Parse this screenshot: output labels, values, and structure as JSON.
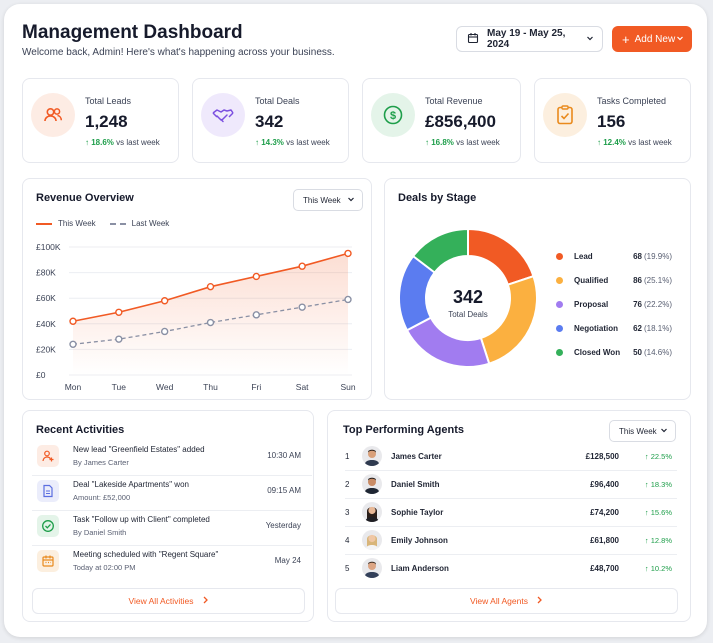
{
  "header": {
    "title": "Management Dashboard",
    "subtitle": "Welcome back, Admin! Here's what's happening across your business.",
    "date_range": "May 19 - May 25, 2024",
    "add_new_label": "Add New"
  },
  "stats": [
    {
      "label": "Total Leads",
      "value": "1,248",
      "change": "18.6%",
      "suffix": "vs last week",
      "icon": "users-icon",
      "color": "#f15a24"
    },
    {
      "label": "Total Deals",
      "value": "342",
      "change": "14.3%",
      "suffix": "vs last week",
      "icon": "handshake-icon",
      "color": "#7b4fe0"
    },
    {
      "label": "Total Revenue",
      "value": "£856,400",
      "change": "16.8%",
      "suffix": "vs last week",
      "icon": "dollar-icon",
      "color": "#1e9e4a"
    },
    {
      "label": "Tasks Completed",
      "value": "156",
      "change": "12.4%",
      "suffix": "vs last week",
      "icon": "clipboard-check-icon",
      "color": "#e98a1d"
    }
  ],
  "revenue": {
    "title": "Revenue Overview",
    "period": "This Week",
    "legend_this": "This Week",
    "legend_last": "Last Week"
  },
  "chart_data": {
    "type": "line",
    "categories": [
      "Mon",
      "Tue",
      "Wed",
      "Thu",
      "Fri",
      "Sat",
      "Sun"
    ],
    "y_ticks": [
      "£0",
      "£20K",
      "£40K",
      "£60K",
      "£80K",
      "£100K"
    ],
    "ylim": [
      0,
      100000
    ],
    "series": [
      {
        "name": "This Week",
        "color": "#f15a24",
        "values": [
          42000,
          49000,
          58000,
          69000,
          77000,
          85000,
          95000
        ]
      },
      {
        "name": "Last Week",
        "color": "#8a90a4",
        "values": [
          24000,
          28000,
          34000,
          41000,
          47000,
          53000,
          59000
        ]
      }
    ]
  },
  "deals": {
    "title": "Deals by Stage",
    "center_value": "342",
    "center_label": "Total Deals",
    "stages": [
      {
        "name": "Lead",
        "value": 68,
        "value_text": "68",
        "pct": "(19.9%)",
        "color": "#f15a24"
      },
      {
        "name": "Qualified",
        "value": 86,
        "value_text": "86",
        "pct": "(25.1%)",
        "color": "#fbb040"
      },
      {
        "name": "Proposal",
        "value": 76,
        "value_text": "76",
        "pct": "(22.2%)",
        "color": "#a17cf0"
      },
      {
        "name": "Negotiation",
        "value": 62,
        "value_text": "62",
        "pct": "(18.1%)",
        "color": "#5b7cf0"
      },
      {
        "name": "Closed Won",
        "value": 50,
        "value_text": "50",
        "pct": "(14.6%)",
        "color": "#34b05a"
      }
    ]
  },
  "activities": {
    "title": "Recent Activities",
    "view_all": "View All Activities",
    "items": [
      {
        "title": "New lead \"Greenfield Estates\" added",
        "sub": "By James Carter",
        "time": "10:30 AM",
        "icon": "user-add-icon",
        "color": "#f15a24",
        "bg": "#fdece4"
      },
      {
        "title": "Deal \"Lakeside Apartments\" won",
        "sub": "Amount: £52,000",
        "time": "09:15 AM",
        "icon": "document-icon",
        "color": "#5b6ee0",
        "bg": "#ebedfb"
      },
      {
        "title": "Task \"Follow up with Client\" completed",
        "sub": "By Daniel Smith",
        "time": "Yesterday",
        "icon": "check-circle-icon",
        "color": "#1e9e4a",
        "bg": "#e4f4e9"
      },
      {
        "title": "Meeting scheduled with \"Regent Square\"",
        "sub": "Today at 02:00 PM",
        "time": "May 24",
        "icon": "calendar-icon",
        "color": "#e98a1d",
        "bg": "#fcefdf"
      }
    ]
  },
  "agents": {
    "title": "Top Performing Agents",
    "period": "This Week",
    "view_all": "View All Agents",
    "items": [
      {
        "rank": "1",
        "name": "James Carter",
        "amount": "£128,500",
        "change": "22.5%",
        "hair": "#2a201a",
        "skin": "#d9a07a"
      },
      {
        "rank": "2",
        "name": "Daniel Smith",
        "amount": "£96,400",
        "change": "18.3%",
        "hair": "#1d1b1a",
        "skin": "#c98b65"
      },
      {
        "rank": "3",
        "name": "Sophie Taylor",
        "amount": "£74,200",
        "change": "15.6%",
        "hair": "#2b1f1a",
        "skin": "#e8b896"
      },
      {
        "rank": "4",
        "name": "Emily Johnson",
        "amount": "£61,800",
        "change": "12.8%",
        "hair": "#d8b57a",
        "skin": "#f0c7a5"
      },
      {
        "rank": "5",
        "name": "Liam Anderson",
        "amount": "£48,700",
        "change": "10.2%",
        "hair": "#3a2a20",
        "skin": "#dca584"
      }
    ]
  }
}
